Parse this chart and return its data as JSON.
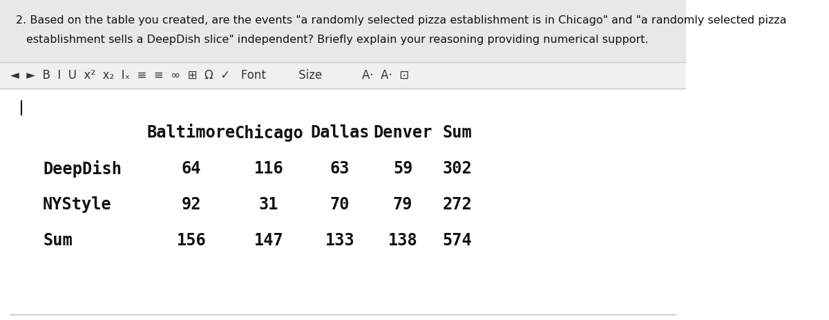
{
  "question_text_line1": "2. Based on the table you created, are the events \"a randomly selected pizza establishment is in Chicago\" and \"a randomly selected pizza",
  "question_text_line2": "establishment sells a DeepDish slice\" independent? Briefly explain your reasoning providing numerical support.",
  "toolbar_bg": "#f0f0f0",
  "editor_bg": "#ffffff",
  "question_bg": "#e8e8e8",
  "table_headers": [
    "",
    "Baltimore",
    "Chicago",
    "Dallas",
    "Denver",
    "Sum"
  ],
  "table_rows": [
    [
      "DeepDish",
      "64",
      "116",
      "63",
      "59",
      "302"
    ],
    [
      "NYStyle",
      "92",
      "31",
      "70",
      "79",
      "272"
    ],
    [
      "Sum",
      "156",
      "147",
      "133",
      "138",
      "574"
    ]
  ],
  "font_family": "monospace",
  "question_fontsize": 11.5,
  "table_header_fontsize": 17,
  "table_body_fontsize": 17,
  "toolbar_fontsize": 13,
  "text_color": "#111111",
  "gray_text": "#333333",
  "border_color": "#cccccc",
  "separator_color": "#bbbbbb"
}
